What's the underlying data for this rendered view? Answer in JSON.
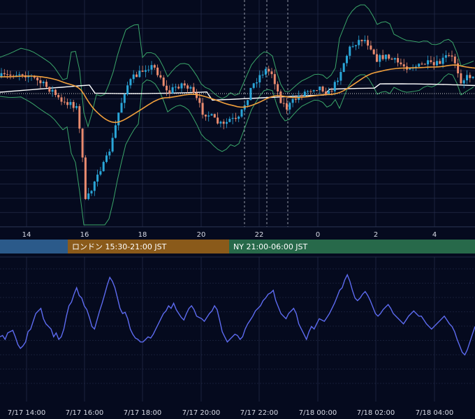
{
  "colors": {
    "background": "#050a1e",
    "grid": "#2a3352",
    "candle_up": "#2aa6d8",
    "candle_down": "#e98a6e",
    "bollinger": "#3aa66a",
    "ma_orange": "#f2a03c",
    "ma_white": "#ffffff",
    "dotted_level": "#d0d0d0",
    "oscillator": "#5d6bf0",
    "session_tokyo": "#2b5a8a",
    "session_london": "#8a5a1a",
    "session_ny": "#27694a"
  },
  "sessions": [
    {
      "id": "tokyo",
      "label": ""
    },
    {
      "id": "london",
      "label": "ロンドン 15:30-21:00 JST"
    },
    {
      "id": "ny",
      "label": "NY 21:00-06:00 JST"
    }
  ],
  "chart_data": [
    {
      "type": "candlestick",
      "x_ticks": [
        "14",
        "16",
        "18",
        "20",
        "22",
        "0",
        "2",
        "4"
      ],
      "grid": true,
      "overlays": [
        "bollinger_bands",
        "moving_average_orange",
        "moving_average_white",
        "dotted_level"
      ],
      "candles_description": "5-minute style candles, 7/17 13:30 – 7/18 05:00; sharp drop near 16:00, recovery to 18:00, range 19:00–23:00, rally after 01:00"
    },
    {
      "type": "line",
      "x_ticks": [
        "7/17 14:00",
        "7/17 16:00",
        "7/17 18:00",
        "7/17 20:00",
        "7/17 22:00",
        "7/18 00:00",
        "7/18 02:00",
        "7/18 04:00"
      ],
      "series": [
        {
          "values": [
            42,
            43,
            40,
            45,
            46,
            47,
            42,
            36,
            33,
            35,
            38,
            46,
            48,
            54,
            60,
            62,
            64,
            56,
            52,
            50,
            48,
            42,
            45,
            40,
            42,
            48,
            58,
            66,
            69,
            75,
            80,
            74,
            72,
            66,
            63,
            57,
            50,
            48,
            55,
            62,
            68,
            75,
            82,
            88,
            85,
            80,
            72,
            64,
            60,
            61,
            56,
            48,
            44,
            41,
            40,
            38,
            38,
            40,
            42,
            41,
            44,
            48,
            52,
            56,
            60,
            62,
            66,
            64,
            68,
            63,
            60,
            57,
            55,
            60,
            64,
            66,
            63,
            58,
            57,
            56,
            54,
            57,
            60,
            62,
            66,
            63,
            55,
            46,
            42,
            38,
            40,
            42,
            44,
            43,
            40,
            42,
            48,
            52,
            55,
            58,
            62,
            64,
            66,
            70,
            72,
            75,
            76,
            78,
            70,
            65,
            60,
            58,
            56,
            60,
            62,
            64,
            60,
            52,
            48,
            44,
            40,
            46,
            50,
            48,
            52,
            56,
            55,
            54,
            57,
            60,
            64,
            68,
            73,
            78,
            80,
            86,
            90,
            85,
            78,
            72,
            70,
            72,
            75,
            77,
            74,
            70,
            65,
            60,
            58,
            60,
            63,
            65,
            67,
            64,
            60,
            58,
            56,
            54,
            52,
            55,
            58,
            60,
            62,
            60,
            58,
            58,
            55,
            52,
            50,
            48,
            50,
            52,
            54,
            56,
            58,
            55,
            52,
            50,
            46,
            40,
            35,
            30,
            28,
            32,
            38,
            44,
            50
          ]
        }
      ]
    }
  ]
}
